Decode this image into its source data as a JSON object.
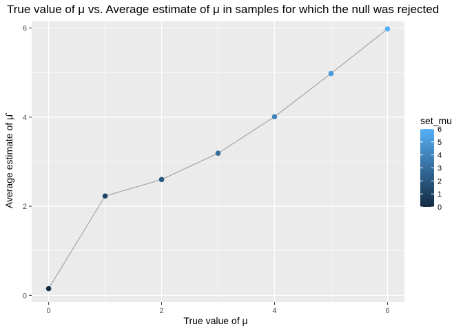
{
  "chart_data": {
    "type": "scatter",
    "title": "True value of μ vs. Average estimate of μ in samples for which the null was rejected",
    "xlabel": "True value of μ",
    "ylabel": "Average estimate of μ̂",
    "xlim": [
      -0.3,
      6.3
    ],
    "ylim": [
      -0.15,
      6.15
    ],
    "xticks": [
      0,
      2,
      4,
      6
    ],
    "yticks": [
      0,
      2,
      4,
      6
    ],
    "x": [
      0,
      1,
      2,
      3,
      4,
      5,
      6
    ],
    "y": [
      0.15,
      2.23,
      2.6,
      3.19,
      4.01,
      4.98,
      5.98
    ],
    "connect_line": true,
    "grid": true,
    "legend": {
      "title": "set_mu",
      "type": "colorbar",
      "placement": "right",
      "range": [
        0,
        6
      ],
      "ticks": [
        "6",
        "5",
        "4",
        "3",
        "2",
        "1",
        "0"
      ],
      "color_low": "#132B43",
      "color_high": "#56B1F7"
    },
    "colors": {
      "panel_bg": "#EBEBEB",
      "grid": "#FFFFFF",
      "line": "#A6A6A6"
    }
  }
}
